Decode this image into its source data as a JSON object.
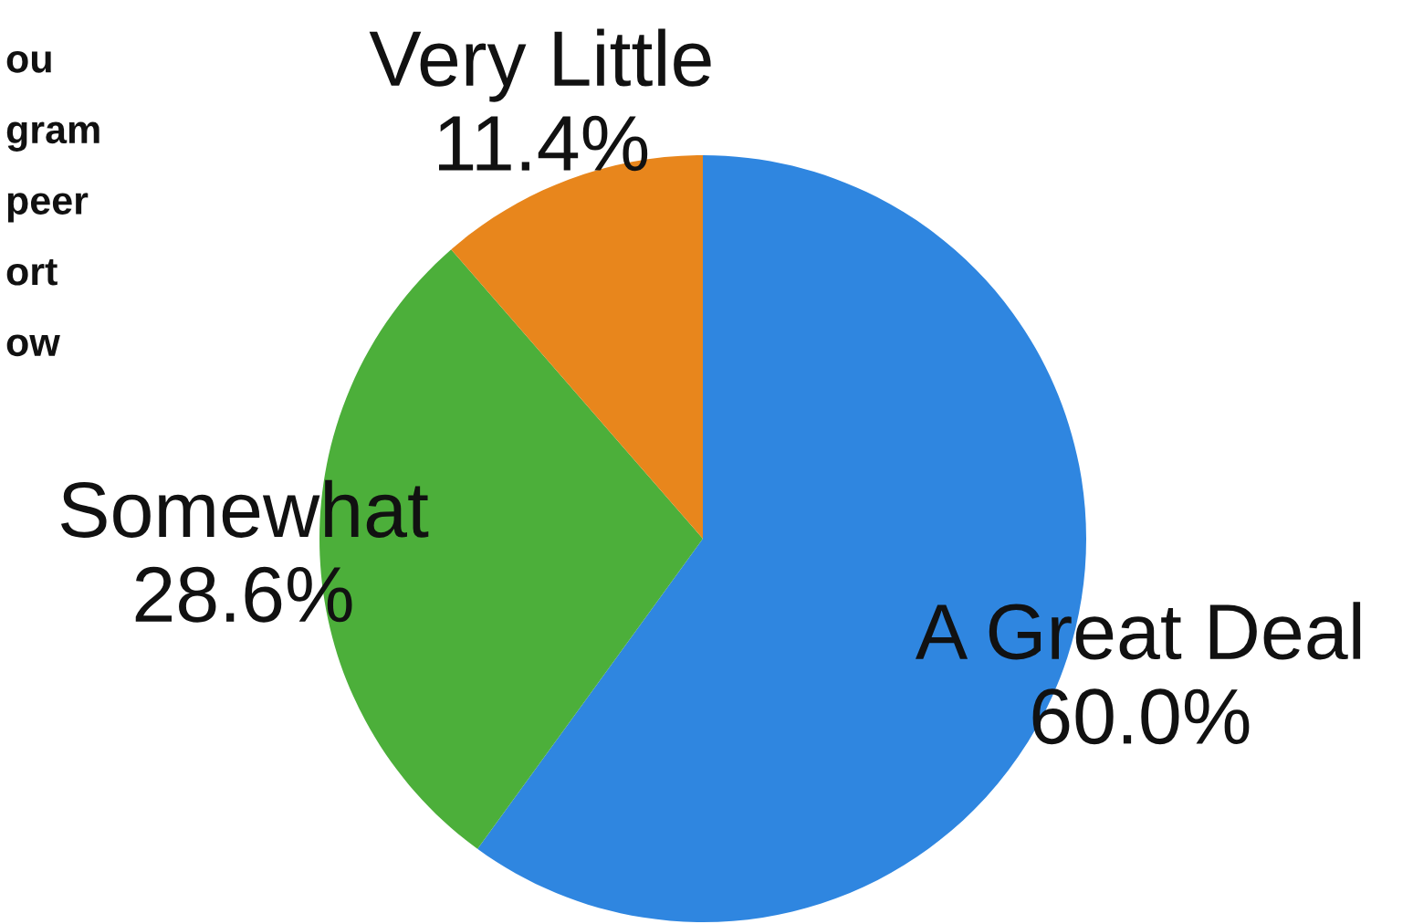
{
  "chart_data": {
    "type": "pie",
    "title": "ou\ngram\npeer\nort\now",
    "categories": [
      "A Great Deal",
      "Somewhat",
      "Very Little"
    ],
    "values": [
      60.0,
      28.6,
      11.4
    ],
    "value_labels": [
      "60.0%",
      "28.6%",
      "11.4%"
    ],
    "colors": [
      "#2f86e0",
      "#4caf3a",
      "#e8861c"
    ]
  }
}
